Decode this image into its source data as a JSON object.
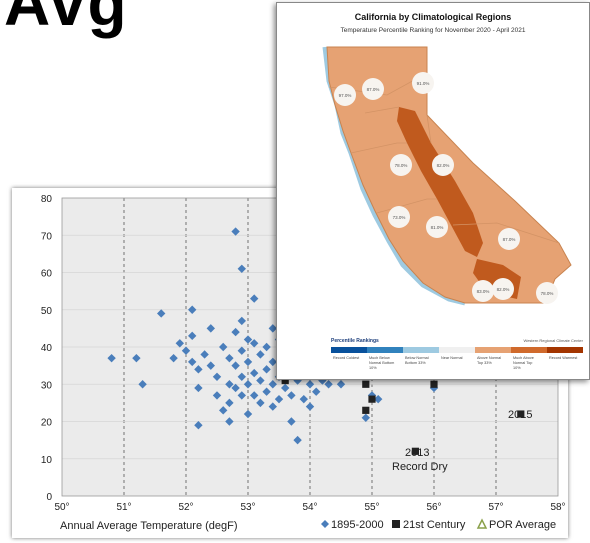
{
  "chart_data": [
    {
      "type": "scatter",
      "title": "",
      "xlabel": "Annual Average Temperature (degF)",
      "ylabel": "",
      "xlim": [
        50,
        58
      ],
      "ylim": [
        0,
        80
      ],
      "x_ticks": [
        "50°",
        "51°",
        "52°",
        "53°",
        "54°",
        "55°",
        "56°",
        "57°",
        "58°"
      ],
      "y_ticks": [
        "0",
        "10",
        "20",
        "30",
        "40",
        "50",
        "60",
        "70",
        "80"
      ],
      "grid": true,
      "legend_position": "bottom-right",
      "legend": [
        "1895-2000",
        "21st Century",
        "POR Average"
      ],
      "series": [
        {
          "name": "1895-2000",
          "color": "#4a7ebb",
          "marker": "diamond",
          "points": [
            [
              50.8,
              37
            ],
            [
              51.2,
              37
            ],
            [
              51.3,
              30
            ],
            [
              51.6,
              49
            ],
            [
              51.8,
              37
            ],
            [
              51.9,
              41
            ],
            [
              52.0,
              39
            ],
            [
              52.1,
              36
            ],
            [
              52.1,
              50
            ],
            [
              52.1,
              43
            ],
            [
              52.2,
              34
            ],
            [
              52.2,
              29
            ],
            [
              52.2,
              19
            ],
            [
              52.3,
              38
            ],
            [
              52.4,
              45
            ],
            [
              52.4,
              35
            ],
            [
              52.5,
              32
            ],
            [
              52.5,
              27
            ],
            [
              52.6,
              40
            ],
            [
              52.6,
              23
            ],
            [
              52.7,
              37
            ],
            [
              52.7,
              30
            ],
            [
              52.7,
              25
            ],
            [
              52.7,
              20
            ],
            [
              52.8,
              71
            ],
            [
              52.8,
              44
            ],
            [
              52.8,
              35
            ],
            [
              52.8,
              29
            ],
            [
              52.9,
              61
            ],
            [
              52.9,
              47
            ],
            [
              52.9,
              39
            ],
            [
              52.9,
              32
            ],
            [
              52.9,
              27
            ],
            [
              53.0,
              42
            ],
            [
              53.0,
              36
            ],
            [
              53.0,
              30
            ],
            [
              53.0,
              22
            ],
            [
              53.1,
              53
            ],
            [
              53.1,
              41
            ],
            [
              53.1,
              33
            ],
            [
              53.1,
              27
            ],
            [
              53.2,
              38
            ],
            [
              53.2,
              31
            ],
            [
              53.2,
              25
            ],
            [
              53.3,
              40
            ],
            [
              53.3,
              34
            ],
            [
              53.3,
              28
            ],
            [
              53.4,
              45
            ],
            [
              53.4,
              36
            ],
            [
              53.4,
              30
            ],
            [
              53.4,
              24
            ],
            [
              53.5,
              42
            ],
            [
              53.5,
              32
            ],
            [
              53.5,
              26
            ],
            [
              53.6,
              38
            ],
            [
              53.6,
              29
            ],
            [
              53.7,
              34
            ],
            [
              53.7,
              27
            ],
            [
              53.7,
              20
            ],
            [
              53.8,
              31
            ],
            [
              53.8,
              15
            ],
            [
              53.9,
              33
            ],
            [
              53.9,
              26
            ],
            [
              54.0,
              30
            ],
            [
              54.1,
              28
            ],
            [
              54.2,
              31
            ],
            [
              54.3,
              30
            ],
            [
              54.5,
              30
            ],
            [
              54.9,
              21
            ],
            [
              55.0,
              27
            ],
            [
              55.1,
              26
            ],
            [
              56.0,
              29
            ],
            [
              54.0,
              24
            ]
          ]
        },
        {
          "name": "21st Century",
          "color": "#222222",
          "marker": "square",
          "points": [
            [
              53.6,
              31
            ],
            [
              54.9,
              30
            ],
            [
              54.9,
              23
            ],
            [
              55.0,
              26
            ],
            [
              56.0,
              30
            ],
            [
              57.4,
              22
            ],
            [
              55.7,
              12
            ]
          ]
        },
        {
          "name": "POR Average",
          "color": "#8aa04a",
          "marker": "triangle",
          "points": []
        }
      ],
      "annotations": [
        {
          "text": "2015",
          "x": 57.4,
          "y": 22
        },
        {
          "text": "2013",
          "x": 55.7,
          "y": 12
        },
        {
          "text": "Record Dry",
          "x": 55.7,
          "y": 12
        }
      ]
    },
    {
      "type": "map",
      "title": "California by Climatological Regions",
      "subtitle": "Temperature Percentile Ranking for November 2020 - April 2021",
      "region_labels": [
        "97.0%",
        "87.0%",
        "91.0%",
        "78.0%",
        "82.0%",
        "73.0%",
        "81.0%",
        "87.0%",
        "83.0%",
        "82.0%",
        "78.0%"
      ],
      "legend_title": "Percentile Rankings",
      "legend_note": "Western Regional Climate Center",
      "legend_categories": [
        {
          "label": "Record Coldest",
          "color": "#08519c"
        },
        {
          "label": "Much Below Normal Bottom 10%",
          "color": "#3182bd"
        },
        {
          "label": "Below Normal Bottom 33%",
          "color": "#9ecae1"
        },
        {
          "label": "Near Normal",
          "color": "#f0f0f0"
        },
        {
          "label": "Above Normal Top 33%",
          "color": "#e6a273"
        },
        {
          "label": "Much Above Normal Top 10%",
          "color": "#d06a2c"
        },
        {
          "label": "Record Warmest",
          "color": "#a33500"
        }
      ]
    }
  ]
}
